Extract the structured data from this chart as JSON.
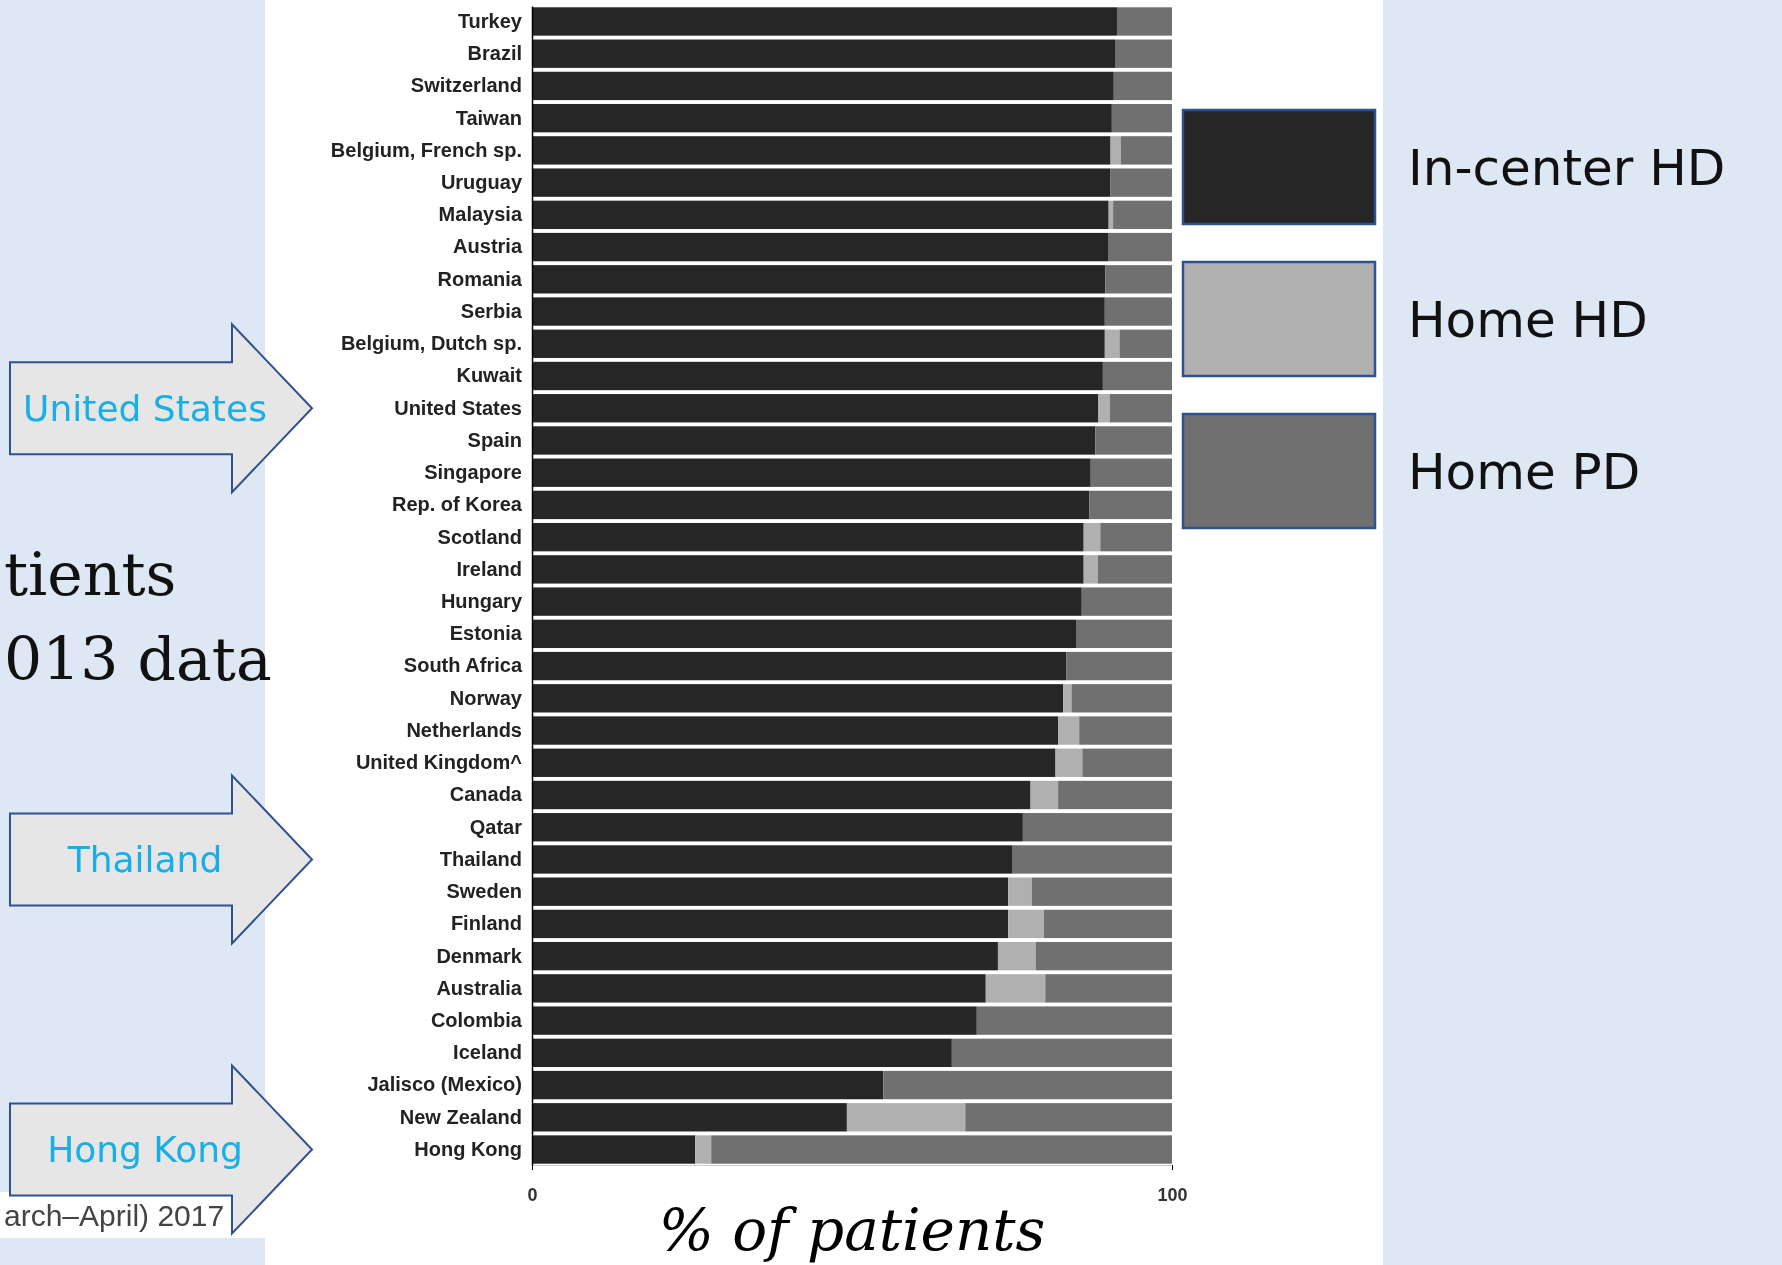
{
  "chart_data": {
    "type": "bar",
    "orientation": "horizontal",
    "stacked": true,
    "xlabel": "% of patients",
    "xlim": [
      0,
      100
    ],
    "xticks": [
      0,
      100
    ],
    "legend": "right",
    "categories": [
      "Turkey",
      "Brazil",
      "Switzerland",
      "Taiwan",
      "Belgium, French sp.",
      "Uruguay",
      "Malaysia",
      "Austria",
      "Romania",
      "Serbia",
      "Belgium, Dutch sp.",
      "Kuwait",
      "United States",
      "Spain",
      "Singapore",
      "Rep. of Korea",
      "Scotland",
      "Ireland",
      "Hungary",
      "Estonia",
      "South Africa",
      "Norway",
      "Netherlands",
      "United Kingdom^",
      "Canada",
      "Qatar",
      "Thailand",
      "Sweden",
      "Finland",
      "Denmark",
      "Australia",
      "Colombia",
      "Iceland",
      "Jalisco (Mexico)",
      "New Zealand",
      "Hong Kong"
    ],
    "series": [
      {
        "name": "In-center HD",
        "color": "#262626",
        "values": [
          91.4,
          91.2,
          90.9,
          90.6,
          90.4,
          90.4,
          90.1,
          90.1,
          89.6,
          89.5,
          89.5,
          89.2,
          88.5,
          88.0,
          87.3,
          87.1,
          86.2,
          86.2,
          85.9,
          85.1,
          83.5,
          83.0,
          82.2,
          81.8,
          77.9,
          76.7,
          75.0,
          74.4,
          74.4,
          72.8,
          70.9,
          69.5,
          65.6,
          54.9,
          49.2,
          25.5
        ]
      },
      {
        "name": "Home HD",
        "color": "#b0b0b0",
        "values": [
          0,
          0,
          0,
          0,
          1.6,
          0,
          0.7,
          0,
          0,
          0,
          2.3,
          0,
          1.8,
          0,
          0,
          0,
          2.6,
          2.2,
          0,
          0,
          0,
          1.3,
          3.3,
          4.2,
          4.3,
          0,
          0,
          3.7,
          5.6,
          5.9,
          9.3,
          0,
          0,
          0,
          18.5,
          2.5
        ]
      },
      {
        "name": "Home PD",
        "color": "#707070",
        "values": [
          8.6,
          8.8,
          9.1,
          9.4,
          8.0,
          9.6,
          9.2,
          9.9,
          10.4,
          10.5,
          8.2,
          10.8,
          9.7,
          12.0,
          12.7,
          12.9,
          11.2,
          11.6,
          14.1,
          14.9,
          16.5,
          15.7,
          14.5,
          14.0,
          17.8,
          23.3,
          25.0,
          21.9,
          20.0,
          21.3,
          19.8,
          30.5,
          34.4,
          45.1,
          32.3,
          72.0
        ]
      }
    ],
    "annotations": [
      "tients",
      "013 data",
      "arch–April) 2017",
      "United States",
      "Thailand",
      "Hong Kong"
    ]
  }
}
